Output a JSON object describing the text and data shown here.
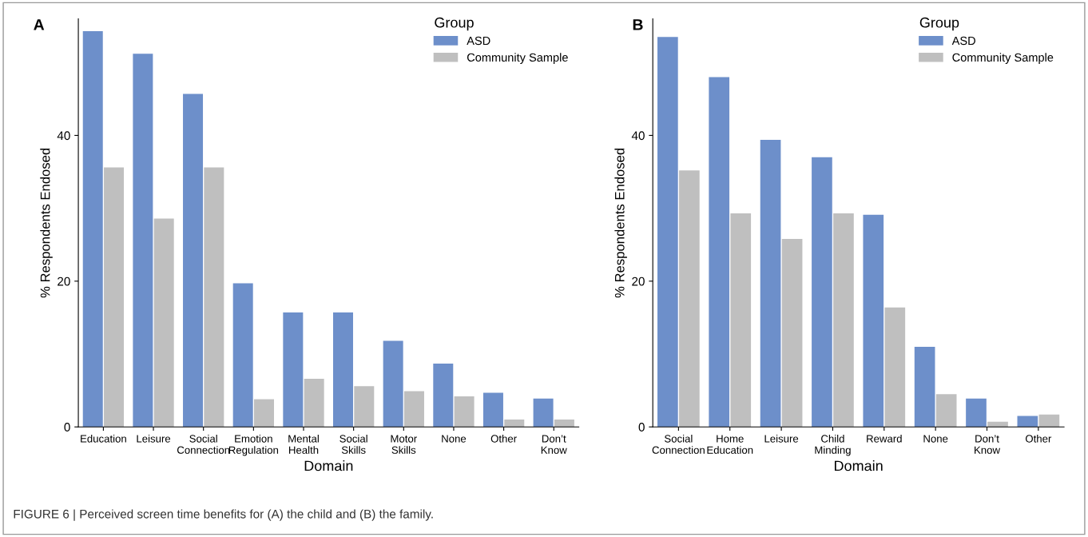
{
  "chart_data": [
    {
      "type": "bar",
      "title": "A",
      "xlabel": "Domain",
      "ylabel": "% Respondents Endosed",
      "legend_title": "Group",
      "legend": "top right",
      "grid": false,
      "categories": [
        "Education",
        "Leisure",
        "Social\nConnection",
        "Emotion\nRegulation",
        "Mental\nHealth",
        "Social\nSkills",
        "Motor\nSkills",
        "None",
        "Other",
        "Don’t\nKnow"
      ],
      "series": [
        {
          "name": "ASD",
          "color": "#6d8fca",
          "values": [
            54.3,
            51.2,
            45.7,
            19.7,
            15.7,
            15.7,
            11.8,
            8.7,
            4.7,
            3.9
          ]
        },
        {
          "name": "Community Sample",
          "color": "#bfbfbf",
          "values": [
            35.6,
            28.6,
            35.6,
            3.8,
            6.6,
            5.6,
            4.9,
            4.2,
            1.0,
            1.0
          ]
        }
      ],
      "ylim": [
        0,
        56
      ],
      "yticks": [
        0,
        20,
        40
      ],
      "annotations": [
        "FIGURE 6 | Perceived screen time benefits for (A) the child and (B) the family."
      ]
    },
    {
      "type": "bar",
      "title": "B",
      "xlabel": "Domain",
      "ylabel": "% Respondents Endosed",
      "legend_title": "Group",
      "legend": "top right",
      "grid": false,
      "categories": [
        "Social\nConnection",
        "Home\nEducation",
        "Leisure",
        "Child\nMinding",
        "Reward",
        "None",
        "Don’t\nKnow",
        "Other"
      ],
      "series": [
        {
          "name": "ASD",
          "color": "#6d8fca",
          "values": [
            53.5,
            48.0,
            39.4,
            37.0,
            29.1,
            11.0,
            3.9,
            1.5
          ]
        },
        {
          "name": "Community Sample",
          "color": "#bfbfbf",
          "values": [
            35.2,
            29.3,
            25.8,
            29.3,
            16.4,
            4.5,
            0.7,
            1.7
          ]
        }
      ],
      "ylim": [
        0,
        56
      ],
      "yticks": [
        0,
        20,
        40
      ]
    }
  ]
}
